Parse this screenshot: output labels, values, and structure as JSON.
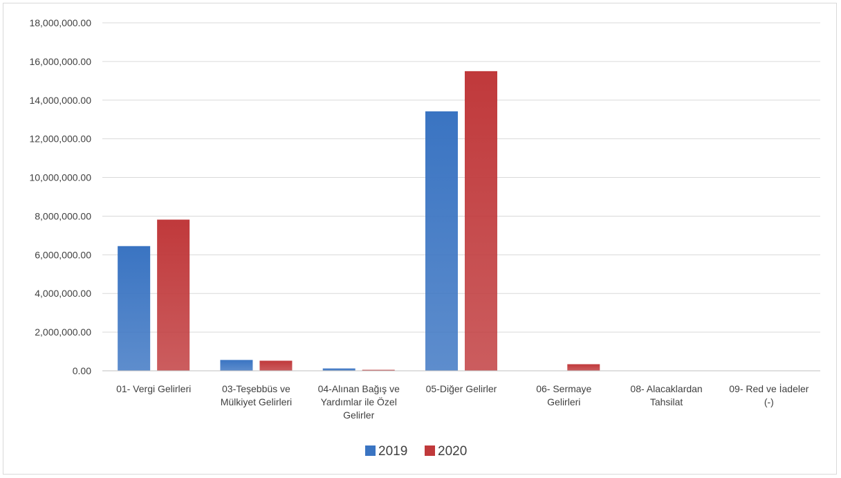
{
  "chart_data": {
    "type": "bar",
    "title": "",
    "xlabel": "",
    "ylabel": "",
    "categories": [
      [
        "01- Vergi Gelirleri"
      ],
      [
        "03-Teşebbüs ve",
        "Mülkiyet Gelirleri"
      ],
      [
        "04-Alınan Bağış ve",
        "Yardımlar ile Özel",
        "Gelirler"
      ],
      [
        "05-Diğer Gelirler"
      ],
      [
        "06- Sermaye",
        "Gelirleri"
      ],
      [
        "08- Alacaklardan",
        "Tahsilat"
      ],
      [
        "09- Red ve İadeler",
        "(-)"
      ]
    ],
    "series": [
      {
        "name": "2019",
        "color": "#3a74c2",
        "values": [
          6450000,
          560000,
          120000,
          13420000,
          0,
          0,
          0
        ]
      },
      {
        "name": "2020",
        "color": "#c0393b",
        "values": [
          7820000,
          520000,
          50000,
          15500000,
          340000,
          0,
          0
        ]
      }
    ],
    "ylim": [
      0,
      18000000
    ],
    "yticks": [
      0,
      2000000,
      4000000,
      6000000,
      8000000,
      10000000,
      12000000,
      14000000,
      16000000,
      18000000
    ],
    "ytick_labels": [
      "0.00",
      "2,000,000.00",
      "4,000,000.00",
      "6,000,000.00",
      "8,000,000.00",
      "10,000,000.00",
      "12,000,000.00",
      "14,000,000.00",
      "16,000,000.00",
      "18,000,000.00"
    ],
    "grid": true,
    "legend": "bottom-center"
  }
}
